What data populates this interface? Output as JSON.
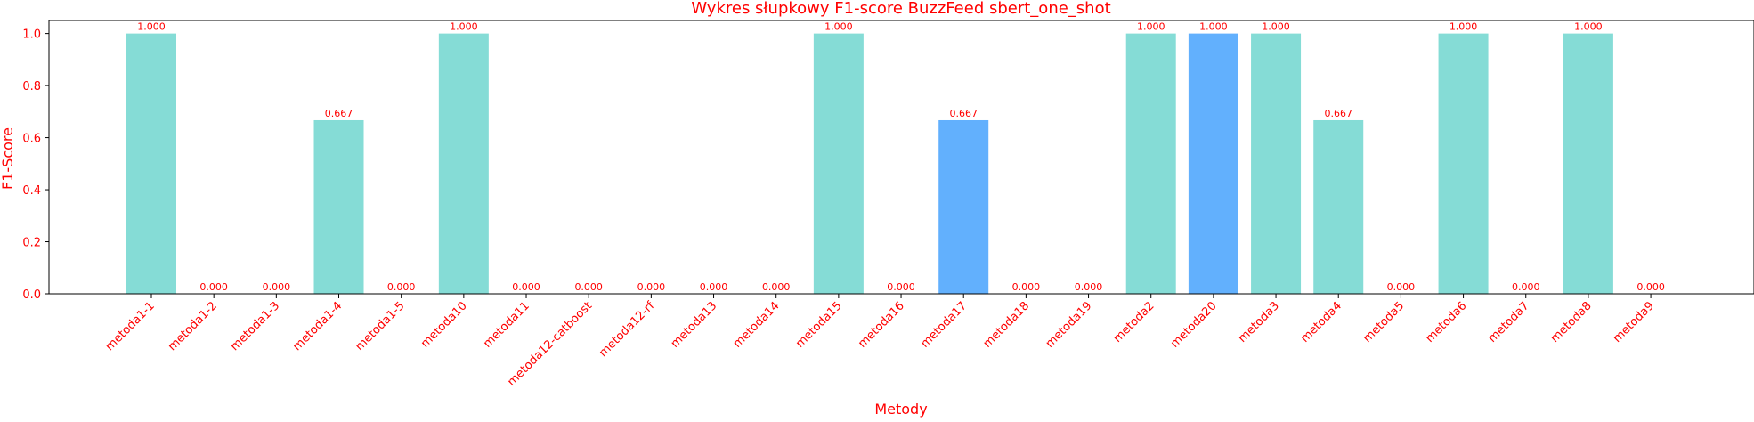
{
  "chart_data": {
    "type": "bar",
    "title": "Wykres słupkowy F1-score BuzzFeed sbert_one_shot",
    "xlabel": "Metody",
    "ylabel": "F1-Score",
    "ylim": [
      0,
      1.05
    ],
    "yticks": [
      "0.0",
      "0.2",
      "0.4",
      "0.6",
      "0.8",
      "1.0"
    ],
    "grid": false,
    "legend": "none",
    "text_color": "#ff0000",
    "categories": [
      "metoda1-1",
      "metoda1-2",
      "metoda1-3",
      "metoda1-4",
      "metoda1-5",
      "metoda10",
      "metoda11",
      "metoda12-catboost",
      "metoda12-rf",
      "metoda13",
      "metoda14",
      "metoda15",
      "metoda16",
      "metoda17",
      "metoda18",
      "metoda19",
      "metoda2",
      "metoda20",
      "metoda3",
      "metoda4",
      "metoda5",
      "metoda6",
      "metoda7",
      "metoda8",
      "metoda9"
    ],
    "values": [
      1.0,
      0.0,
      0.0,
      0.667,
      0.0,
      1.0,
      0.0,
      0.0,
      0.0,
      0.0,
      0.0,
      1.0,
      0.0,
      0.667,
      0.0,
      0.0,
      1.0,
      1.0,
      1.0,
      0.667,
      0.0,
      1.0,
      0.0,
      1.0,
      0.0
    ],
    "value_labels": [
      "1.000",
      "0.000",
      "0.000",
      "0.667",
      "0.000",
      "1.000",
      "0.000",
      "0.000",
      "0.000",
      "0.000",
      "0.000",
      "1.000",
      "0.000",
      "0.667",
      "0.000",
      "0.000",
      "1.000",
      "1.000",
      "1.000",
      "0.667",
      "0.000",
      "1.000",
      "0.000",
      "1.000",
      "0.000"
    ],
    "bar_colors": [
      "#85dcd6",
      "#85dcd6",
      "#85dcd6",
      "#85dcd6",
      "#85dcd6",
      "#85dcd6",
      "#85dcd6",
      "#85dcd6",
      "#85dcd6",
      "#85dcd6",
      "#85dcd6",
      "#85dcd6",
      "#85dcd6",
      "#62b0fd",
      "#85dcd6",
      "#85dcd6",
      "#85dcd6",
      "#62b0fd",
      "#85dcd6",
      "#85dcd6",
      "#85dcd6",
      "#85dcd6",
      "#85dcd6",
      "#85dcd6",
      "#85dcd6"
    ]
  }
}
